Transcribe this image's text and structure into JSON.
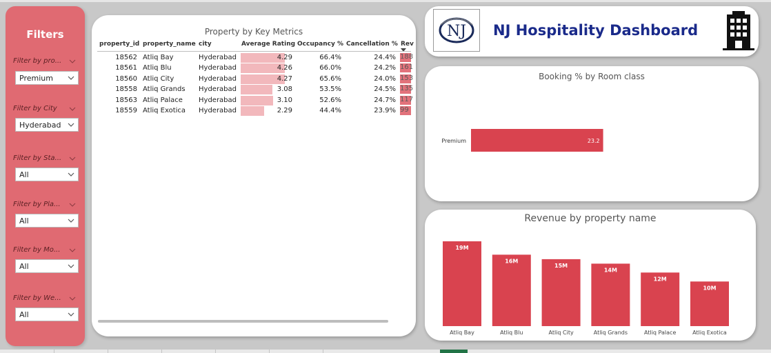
{
  "filters": {
    "title": "Filters",
    "items": [
      {
        "label": "Filter by pro...",
        "value": "Premium"
      },
      {
        "label": "Filter by City",
        "value": "Hyderabad"
      },
      {
        "label": "Filter by Sta...",
        "value": "All"
      },
      {
        "label": "Filter by Pla...",
        "value": "All"
      },
      {
        "label": "Filter by Mo...",
        "value": "All"
      },
      {
        "label": "Filter by We...",
        "value": "All"
      }
    ]
  },
  "table": {
    "title": "Property by Key Metrics",
    "columns": [
      "property_id",
      "property_name",
      "city",
      "Average Rating",
      "Occupancy %",
      "Cancellation %",
      "Rev"
    ],
    "rows": [
      {
        "id": "18562",
        "name": "Atliq Bay",
        "city": "Hyderabad",
        "rating": "4.29",
        "occupancy": "66.4%",
        "cancellation": "24.4%",
        "rev": "188"
      },
      {
        "id": "18561",
        "name": "Atliq Blu",
        "city": "Hyderabad",
        "rating": "4.26",
        "occupancy": "66.0%",
        "cancellation": "24.2%",
        "rev": "161"
      },
      {
        "id": "18560",
        "name": "Atliq City",
        "city": "Hyderabad",
        "rating": "4.27",
        "occupancy": "65.6%",
        "cancellation": "24.0%",
        "rev": "153"
      },
      {
        "id": "18558",
        "name": "Atliq Grands",
        "city": "Hyderabad",
        "rating": "3.08",
        "occupancy": "53.5%",
        "cancellation": "24.5%",
        "rev": "135"
      },
      {
        "id": "18563",
        "name": "Atliq Palace",
        "city": "Hyderabad",
        "rating": "3.10",
        "occupancy": "52.6%",
        "cancellation": "24.7%",
        "rev": "117"
      },
      {
        "id": "18559",
        "name": "Atliq Exotica",
        "city": "Hyderabad",
        "rating": "2.29",
        "occupancy": "44.4%",
        "cancellation": "23.9%",
        "rev": "99"
      }
    ],
    "rating_max": 5
  },
  "header": {
    "title": "NJ Hospitality Dashboard",
    "logo_text": "NJ"
  },
  "colors": {
    "accent": "#d9434f",
    "filter_panel": "#e06a72",
    "title_blue": "#1a2a8a",
    "rating_bar": "#f2b8bc"
  },
  "chart_data": [
    {
      "type": "bar",
      "orientation": "horizontal",
      "title": "Booking % by Room class",
      "categories": [
        "Premium"
      ],
      "values": [
        23.2
      ],
      "data_labels": [
        "23.2"
      ],
      "xlim": [
        0,
        50
      ]
    },
    {
      "type": "bar",
      "title": "Revenue by property name",
      "categories": [
        "Atliq Bay",
        "Atliq Blu",
        "Atliq City",
        "Atliq Grands",
        "Atliq Palace",
        "Atliq Exotica"
      ],
      "values": [
        19,
        16,
        15,
        14,
        12,
        10
      ],
      "data_labels": [
        "19M",
        "16M",
        "15M",
        "14M",
        "12M",
        "10M"
      ],
      "ylim": [
        0,
        21
      ]
    }
  ]
}
